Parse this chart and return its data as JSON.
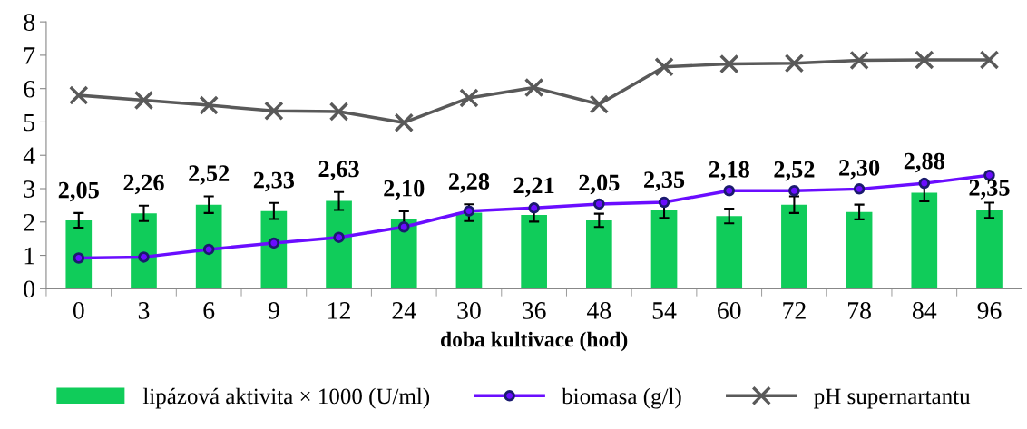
{
  "chart_data": {
    "type": "bar",
    "xlabel": "doba kultivace (hod)",
    "categories": [
      "0",
      "3",
      "6",
      "9",
      "12",
      "24",
      "30",
      "36",
      "48",
      "54",
      "60",
      "72",
      "78",
      "84",
      "96"
    ],
    "ylim": [
      0,
      8
    ],
    "yticks": [
      0,
      1,
      2,
      3,
      4,
      5,
      6,
      7,
      8
    ],
    "grid": false,
    "legend": "bottom",
    "series": [
      {
        "name": "lipázová aktivita × 1000 (U/ml)",
        "color": "#10cc5a",
        "values": [
          2.05,
          2.26,
          2.52,
          2.33,
          2.63,
          2.1,
          2.28,
          2.21,
          2.05,
          2.35,
          2.18,
          2.52,
          2.3,
          2.88,
          2.35
        ],
        "errors": [
          0.22,
          0.23,
          0.25,
          0.24,
          0.27,
          0.22,
          0.25,
          0.2,
          0.2,
          0.23,
          0.22,
          0.25,
          0.22,
          0.26,
          0.23
        ],
        "value_labels": [
          "2,05",
          "2,26",
          "2,52",
          "2,33",
          "2,63",
          "2,10",
          "2,28",
          "2,21",
          "2,05",
          "2,35",
          "2,18",
          "2,52",
          "2,30",
          "2,88",
          "2,35"
        ]
      },
      {
        "name": "biomasa (g/l)",
        "type": "line",
        "color": "#6a0dff",
        "marker": "circle",
        "values": [
          0.92,
          0.95,
          1.18,
          1.37,
          1.54,
          1.85,
          2.33,
          2.42,
          2.54,
          2.59,
          2.94,
          2.94,
          2.99,
          3.16,
          3.4
        ]
      },
      {
        "name": "pH supernartantu",
        "type": "line",
        "color": "#595959",
        "marker": "cross",
        "values": [
          5.8,
          5.65,
          5.5,
          5.33,
          5.31,
          4.98,
          5.72,
          6.03,
          5.53,
          6.65,
          6.74,
          6.76,
          6.85,
          6.86,
          6.86
        ]
      }
    ]
  }
}
